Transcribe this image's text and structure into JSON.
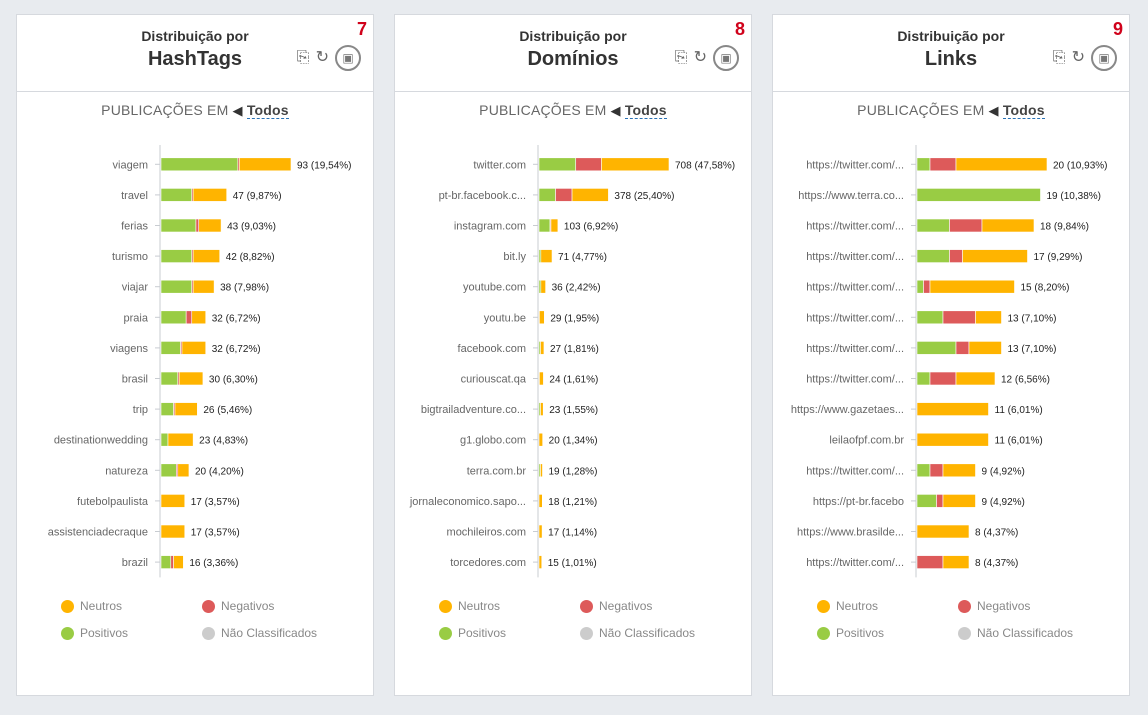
{
  "colors": {
    "neutros": "#ffb400",
    "negativos": "#dd5a5a",
    "positivos": "#99cc44",
    "nao": "#cccccc",
    "badge": "#d0021b"
  },
  "icons": {
    "export": "export-icon",
    "refresh": "refresh-icon",
    "camera": "camera-icon",
    "megaphone": "megaphone-icon"
  },
  "panels": [
    {
      "number": "7",
      "subtitle": "Distribuição por",
      "title": "HashTags",
      "pubs_label": "PUBLICAÇÕES EM",
      "filter": "Todos",
      "legend": {
        "neutros": "Neutros",
        "negativos": "Negativos",
        "positivos": "Positivos",
        "nao": "Não Classificados"
      },
      "chart_data": {
        "type": "bar",
        "orientation": "horizontal",
        "stacked": true,
        "categories": [
          "viagem",
          "travel",
          "ferias",
          "turismo",
          "viajar",
          "praia",
          "viagens",
          "brasil",
          "trip",
          "destinationwedding",
          "natureza",
          "futebolpaulista",
          "assistenciadecraque",
          "brazil"
        ],
        "labels": [
          "93 (19,54%)",
          "47 (9,87%)",
          "43 (9,03%)",
          "42 (8,82%)",
          "38 (7,98%)",
          "32 (6,72%)",
          "32 (6,72%)",
          "30 (6,30%)",
          "26 (5,46%)",
          "23 (4,83%)",
          "20 (4,20%)",
          "17 (3,57%)",
          "17 (3,57%)",
          "16 (3,36%)"
        ],
        "max": 93,
        "series": [
          {
            "name": "Positivos",
            "values": [
              55,
              22,
              25,
              22,
              22,
              18,
              14,
              12,
              9,
              5,
              11,
              0,
              0,
              7
            ]
          },
          {
            "name": "Negativos",
            "values": [
              1,
              1,
              2,
              1,
              1,
              4,
              1,
              1,
              1,
              0,
              1,
              0,
              0,
              2
            ]
          },
          {
            "name": "Neutros",
            "values": [
              37,
              24,
              16,
              19,
              15,
              10,
              17,
              17,
              16,
              18,
              8,
              17,
              17,
              7
            ]
          }
        ]
      }
    },
    {
      "number": "8",
      "subtitle": "Distribuição por",
      "title": "Domínios",
      "pubs_label": "PUBLICAÇÕES EM",
      "filter": "Todos",
      "legend": {
        "neutros": "Neutros",
        "negativos": "Negativos",
        "positivos": "Positivos",
        "nao": "Não Classificados"
      },
      "chart_data": {
        "type": "bar",
        "orientation": "horizontal",
        "stacked": true,
        "categories": [
          "twitter.com",
          "pt-br.facebook.c...",
          "instagram.com",
          "bit.ly",
          "youtube.com",
          "youtu.be",
          "facebook.com",
          "curiouscat.qa",
          "bigtrailadventure.co...",
          "g1.globo.com",
          "terra.com.br",
          "jornaleconomico.sapo...",
          "mochileiros.com",
          "torcedores.com"
        ],
        "labels": [
          "708 (47,58%)",
          "378 (25,40%)",
          "103 (6,92%)",
          "71 (4,77%)",
          "36 (2,42%)",
          "29 (1,95%)",
          "27 (1,81%)",
          "24 (1,61%)",
          "23 (1,55%)",
          "20 (1,34%)",
          "19 (1,28%)",
          "18 (1,21%)",
          "17 (1,14%)",
          "15 (1,01%)"
        ],
        "max": 708,
        "series": [
          {
            "name": "Positivos",
            "values": [
              200,
              90,
              60,
              10,
              10,
              2,
              8,
              2,
              8,
              0,
              8,
              0,
              0,
              0
            ]
          },
          {
            "name": "Negativos",
            "values": [
              140,
              90,
              5,
              0,
              0,
              0,
              0,
              0,
              0,
              0,
              0,
              0,
              0,
              0
            ]
          },
          {
            "name": "Neutros",
            "values": [
              368,
              198,
              38,
              61,
              26,
              27,
              19,
              22,
              15,
              20,
              11,
              18,
              17,
              15
            ]
          }
        ]
      }
    },
    {
      "number": "9",
      "subtitle": "Distribuição por",
      "title": "Links",
      "pubs_label": "PUBLICAÇÕES EM",
      "filter": "Todos",
      "legend": {
        "neutros": "Neutros",
        "negativos": "Negativos",
        "positivos": "Positivos",
        "nao": "Não Classificados"
      },
      "chart_data": {
        "type": "bar",
        "orientation": "horizontal",
        "stacked": true,
        "categories": [
          "https://twitter.com/...",
          "https://www.terra.co...",
          "https://twitter.com/...",
          "https://twitter.com/...",
          "https://twitter.com/...",
          "https://twitter.com/...",
          "https://twitter.com/...",
          "https://twitter.com/...",
          "https://www.gazetaes...",
          "leilaofpf.com.br",
          "https://twitter.com/...",
          "https://pt-br.facebo",
          "https://www.brasilde...",
          "https://twitter.com/..."
        ],
        "labels": [
          "20 (10,93%)",
          "19 (10,38%)",
          "18 (9,84%)",
          "17 (9,29%)",
          "15 (8,20%)",
          "13 (7,10%)",
          "13 (7,10%)",
          "12 (6,56%)",
          "11 (6,01%)",
          "11 (6,01%)",
          "9 (4,92%)",
          "9 (4,92%)",
          "8 (4,37%)",
          "8 (4,37%)"
        ],
        "max": 20,
        "series": [
          {
            "name": "Positivos",
            "values": [
              2,
              19,
              5,
              5,
              1,
              4,
              6,
              2,
              0,
              0,
              2,
              3,
              0,
              0
            ]
          },
          {
            "name": "Negativos",
            "values": [
              4,
              0,
              5,
              2,
              1,
              5,
              2,
              4,
              0,
              0,
              2,
              1,
              0,
              4
            ]
          },
          {
            "name": "Neutros",
            "values": [
              14,
              0,
              8,
              10,
              13,
              4,
              5,
              6,
              11,
              11,
              5,
              5,
              8,
              4
            ]
          }
        ]
      }
    }
  ]
}
